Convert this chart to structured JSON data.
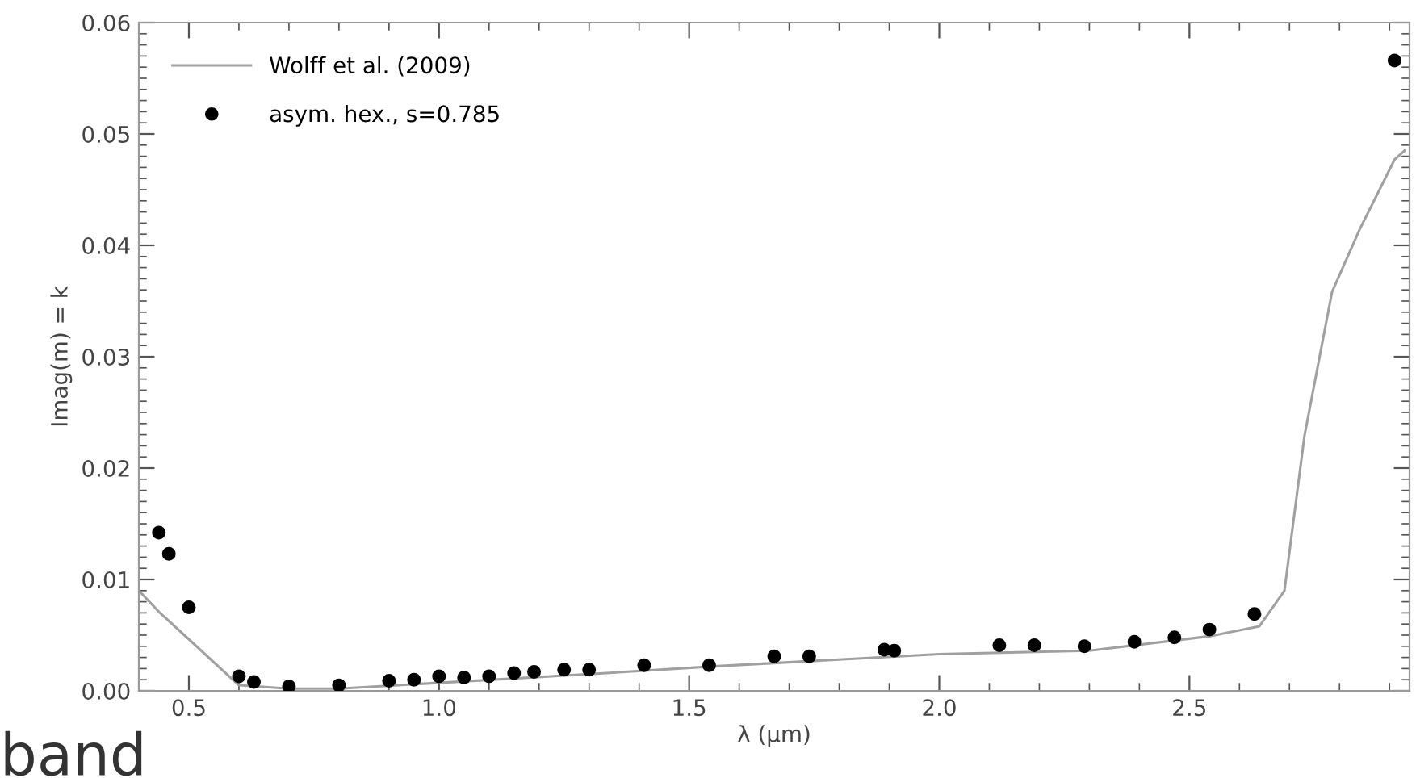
{
  "chart_data": {
    "type": "scatter",
    "xlabel": "λ (μm)",
    "ylabel": "Imag(m) = k",
    "xlim": [
      0.4,
      2.94
    ],
    "xticks": [
      {
        "value": 0.5,
        "label": "0.5"
      },
      {
        "value": 1.0,
        "label": "1.0"
      },
      {
        "value": 1.5,
        "label": "1.5"
      },
      {
        "value": 2.0,
        "label": "2.0"
      },
      {
        "value": 2.5,
        "label": "2.5"
      }
    ],
    "ylim": [
      0,
      0.06
    ],
    "yticks": [
      {
        "value": 0,
        "label": "0.00"
      },
      {
        "value": 0.01,
        "label": "0.01"
      },
      {
        "value": 0.02,
        "label": "0.02"
      },
      {
        "value": 0.03,
        "label": "0.03"
      },
      {
        "value": 0.04,
        "label": "0.04"
      },
      {
        "value": 0.05,
        "label": "0.05"
      },
      {
        "value": 0.06,
        "label": "0.06"
      }
    ],
    "legend": "top left",
    "grid": false,
    "series": [
      {
        "name": "Wolff et al. (2009)",
        "type": "line",
        "color": "#a0a0a0",
        "line_style": "solid",
        "marker": "none",
        "x": [
          0.4,
          0.44,
          0.6,
          0.7,
          0.8,
          1.3,
          1.55,
          2.0,
          2.3,
          2.54,
          2.64,
          2.69,
          2.73,
          2.785,
          2.84,
          2.91,
          2.93
        ],
        "values": [
          0.009,
          0.0071,
          0.0005,
          0.0002,
          0.0002,
          0.0015,
          0.0022,
          0.0033,
          0.0036,
          0.0049,
          0.0058,
          0.009,
          0.0229,
          0.0358,
          0.0414,
          0.0477,
          0.0485
        ]
      },
      {
        "name": "asym. hex., s=0.785",
        "color": "#000000",
        "marker": "circle",
        "x": [
          0.44,
          0.46,
          0.5,
          0.6,
          0.63,
          0.7,
          0.8,
          0.9,
          0.95,
          1.0,
          1.05,
          1.1,
          1.15,
          1.19,
          1.25,
          1.3,
          1.41,
          1.54,
          1.67,
          1.74,
          1.89,
          1.91,
          2.12,
          2.19,
          2.29,
          2.39,
          2.47,
          2.54,
          2.63,
          2.91
        ],
        "values": [
          0.0142,
          0.0123,
          0.0075,
          0.0013,
          0.0008,
          0.0004,
          0.0005,
          0.0009,
          0.001,
          0.0013,
          0.0012,
          0.0013,
          0.0016,
          0.0017,
          0.0019,
          0.0019,
          0.0023,
          0.0023,
          0.0031,
          0.0031,
          0.0037,
          0.0036,
          0.0041,
          0.0041,
          0.004,
          0.0044,
          0.0048,
          0.0055,
          0.0069,
          0.0566
        ]
      }
    ],
    "annotations": [
      "band"
    ]
  }
}
